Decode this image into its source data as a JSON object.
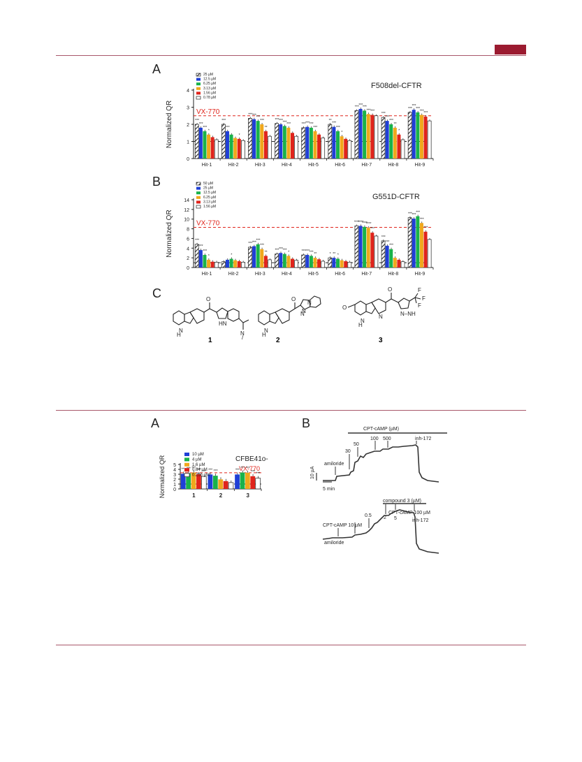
{
  "page": {
    "accent_color": "#9b1b30"
  },
  "fig1": {
    "panel_a": {
      "label": "A",
      "title": "F508del-CFTR",
      "ref_label": "VX-770",
      "ylabel": "Normalized QR",
      "legend": [
        "25 µM",
        "12.5 µM",
        "6.25 µM",
        "3.13 µM",
        "1.56 µM",
        "0.78 µM"
      ]
    },
    "panel_b": {
      "label": "B",
      "title": "G551D-CFTR",
      "ref_label": "VX-770",
      "ylabel": "Normalized QR",
      "legend": [
        "50 µM",
        "25 µM",
        "12.5 µM",
        "6.25 µM",
        "3.13 µM",
        "1.56 µM"
      ]
    },
    "panel_c": {
      "label": "C",
      "compounds": [
        "1",
        "2",
        "3"
      ]
    }
  },
  "fig2": {
    "panel_a": {
      "label": "A",
      "title": "CFBE41o-",
      "ref_label": "VX-770",
      "ylabel": "Normalized QR",
      "legend": [
        "10 µM",
        "4 µM",
        "1.6 µM",
        "0.64 µM",
        "0.256 µM"
      ]
    },
    "panel_b": {
      "label": "B",
      "top": {
        "bar_label": "CPT-cAMP (µM)",
        "steps": [
          "30",
          "50",
          "100",
          "500"
        ],
        "amiloride": "amiloride",
        "inhibitor": "inh-172",
        "scale_y": "10 µA",
        "scale_x": "5 min"
      },
      "bottom": {
        "bar_label": "compound 3  (µM)",
        "cpt_label": "CPT-cAMP 10 µM",
        "cpt_high": "CPT-cAMP 100 µM",
        "steps": [
          "0.5",
          "2",
          "5"
        ],
        "amiloride": "amiloride",
        "inhibitor": "inh-172"
      }
    }
  },
  "chart_data": [
    {
      "type": "bar",
      "title": "F508del-CFTR",
      "ylabel": "Normalized QR",
      "ylim": [
        0,
        4
      ],
      "yticks": [
        0,
        1,
        2,
        3,
        4
      ],
      "reference_lines": [
        {
          "label": "VX-770",
          "value": 2.5
        },
        {
          "value": 1
        }
      ],
      "categories": [
        "Hit-1",
        "Hit-2",
        "Hit-3",
        "Hit-4",
        "Hit-5",
        "Hit-6",
        "Hit-7",
        "Hit-8",
        "Hit-9"
      ],
      "series": [
        {
          "name": "25 µM",
          "color": "hatched",
          "values": [
            2.0,
            2.0,
            2.35,
            2.05,
            1.8,
            2.0,
            2.8,
            2.4,
            2.7
          ]
        },
        {
          "name": "12.5 µM",
          "color": "#1f3fd6",
          "values": [
            1.8,
            1.6,
            2.3,
            2.0,
            1.85,
            1.85,
            2.9,
            2.2,
            2.85
          ]
        },
        {
          "name": "6.25 µM",
          "color": "#19b24a",
          "values": [
            1.6,
            1.4,
            2.2,
            1.9,
            1.8,
            1.6,
            2.8,
            2.0,
            2.7
          ]
        },
        {
          "name": "3.13 µM",
          "color": "#f0a81c",
          "values": [
            1.4,
            1.2,
            2.0,
            1.8,
            1.6,
            1.3,
            2.6,
            1.8,
            2.55
          ]
        },
        {
          "name": "1.56 µM",
          "color": "#e0241b",
          "values": [
            1.25,
            1.15,
            1.6,
            1.5,
            1.4,
            1.15,
            2.55,
            1.4,
            2.45
          ]
        },
        {
          "name": "0.78 µM",
          "color": "#ffffff",
          "values": [
            1.1,
            1.05,
            1.3,
            1.3,
            1.2,
            1.05,
            2.5,
            1.1,
            2.2
          ]
        }
      ],
      "significance": [
        [
          "***",
          "***",
          "***",
          "*",
          "",
          ""
        ],
        [
          "***",
          "***",
          "",
          "",
          "*",
          ""
        ],
        [
          "***",
          "***",
          "***",
          "***",
          "**",
          ""
        ],
        [
          "***",
          "***",
          "***",
          "***",
          "",
          ""
        ],
        [
          "***",
          "***",
          "***",
          "***",
          "",
          ""
        ],
        [
          "**",
          "***",
          "***",
          "*",
          "",
          ""
        ],
        [
          "***",
          "***",
          "***",
          "***",
          "***",
          ""
        ],
        [
          "***",
          "***",
          "***",
          "**",
          "*",
          ""
        ],
        [
          "***",
          "***",
          "***",
          "***",
          "***",
          ""
        ]
      ]
    },
    {
      "type": "bar",
      "title": "G551D-CFTR",
      "ylabel": "Normalized QR",
      "ylim": [
        0,
        14
      ],
      "yticks": [
        0,
        2,
        4,
        6,
        8,
        10,
        12,
        14
      ],
      "reference_lines": [
        {
          "label": "VX-770",
          "value": 8.3
        },
        {
          "value": 1
        }
      ],
      "categories": [
        "Hit-1",
        "Hit-2",
        "Hit-3",
        "Hit-4",
        "Hit-5",
        "Hit-6",
        "Hit-7",
        "Hit-8",
        "Hit-9"
      ],
      "series": [
        {
          "name": "50 µM",
          "color": "hatched",
          "values": [
            4.8,
            1.2,
            4.2,
            2.8,
            2.6,
            2.0,
            8.6,
            5.5,
            10.3
          ]
        },
        {
          "name": "25 µM",
          "color": "#1f3fd6",
          "values": [
            3.6,
            1.6,
            4.4,
            3.0,
            2.6,
            2.0,
            8.6,
            4.5,
            10.1
          ]
        },
        {
          "name": "12.5 µM",
          "color": "#19b24a",
          "values": [
            2.6,
            1.8,
            4.8,
            2.8,
            2.4,
            1.8,
            8.4,
            3.8,
            10.6
          ]
        },
        {
          "name": "6.25 µM",
          "color": "#f0a81c",
          "values": [
            1.6,
            1.5,
            3.8,
            2.4,
            2.0,
            1.5,
            8.2,
            2.0,
            9.2
          ]
        },
        {
          "name": "3.13 µM",
          "color": "#e0241b",
          "values": [
            1.2,
            1.3,
            2.4,
            1.8,
            1.7,
            1.3,
            7.2,
            1.6,
            7.4
          ]
        },
        {
          "name": "1.56 µM",
          "color": "#ffffff",
          "values": [
            1.1,
            1.1,
            1.6,
            1.5,
            1.3,
            1.1,
            6.5,
            1.2,
            5.8
          ]
        }
      ],
      "significance": [
        [
          "***",
          "***",
          "***",
          "*",
          "",
          ""
        ],
        [
          "",
          "",
          "*",
          "",
          "",
          ""
        ],
        [
          "***",
          "***",
          "***",
          "***",
          "**",
          ""
        ],
        [
          "***",
          "***",
          "***",
          "*",
          "",
          ""
        ],
        [
          "***",
          "***",
          "***",
          "**",
          "",
          ""
        ],
        [
          "*",
          "**",
          "*",
          "",
          "",
          ""
        ],
        [
          "****",
          "****",
          "****",
          "****",
          "***",
          ""
        ],
        [
          "***",
          "***",
          "***",
          "*",
          "",
          ""
        ],
        [
          "***",
          "***",
          "***",
          "***",
          "***",
          ""
        ]
      ]
    },
    {
      "type": "bar",
      "title": "CFBE41o-",
      "ylabel": "Normalized QR",
      "ylim": [
        0,
        5
      ],
      "yticks": [
        0,
        1,
        2,
        3,
        4,
        5
      ],
      "reference_lines": [
        {
          "label": "VX-770",
          "value": 3.3
        },
        {
          "value": 1
        }
      ],
      "categories": [
        "1",
        "2",
        "3"
      ],
      "series": [
        {
          "name": "10 µM",
          "color": "#1f3fd6",
          "values": [
            3.1,
            2.95,
            2.95
          ]
        },
        {
          "name": "4 µM",
          "color": "#19b24a",
          "values": [
            3.2,
            2.7,
            3.35
          ]
        },
        {
          "name": "1.6 µM",
          "color": "#f0a81c",
          "values": [
            3.35,
            1.95,
            3.3
          ]
        },
        {
          "name": "0.64 µM",
          "color": "#e0241b",
          "values": [
            3.0,
            1.6,
            2.6
          ]
        },
        {
          "name": "0.256 µM",
          "color": "#ffffff",
          "values": [
            2.55,
            1.3,
            2.2
          ]
        }
      ],
      "significance": [
        [
          "***",
          "***",
          "***",
          "***",
          "**"
        ],
        [
          "***",
          "***",
          "",
          "",
          ""
        ],
        [
          "***",
          "***",
          "***",
          "***",
          "***"
        ]
      ]
    }
  ]
}
